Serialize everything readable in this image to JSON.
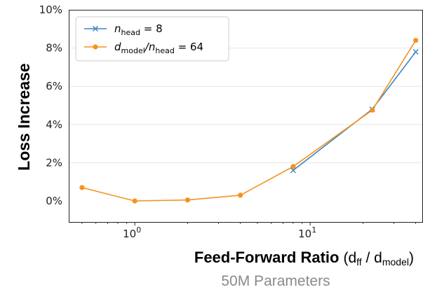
{
  "chart_data": {
    "type": "line",
    "xlabel_bold": "Feed-Forward Ratio",
    "xlabel_rest": "(d",
    "xlabel_sub1": "ff",
    "xlabel_mid": " / d",
    "xlabel_sub2": "model",
    "xlabel_end": ")",
    "ylabel": "Loss Increase",
    "subtitle": "50M Parameters",
    "x_scale": "log",
    "xlim": [
      0.42,
      44
    ],
    "ylim": [
      -1.1,
      10
    ],
    "y_ticks": [
      0,
      2,
      4,
      6,
      8,
      10
    ],
    "y_tick_labels": [
      "0%",
      "2%",
      "4%",
      "6%",
      "8%",
      "10%"
    ],
    "x_ticks": [
      1,
      10
    ],
    "x_tick_labels": [
      {
        "base": "10",
        "exp": "0"
      },
      {
        "base": "10",
        "exp": "1"
      }
    ],
    "grid": "horizontal",
    "legend_position": "top-left",
    "series": [
      {
        "name_main": "n",
        "name_sub": "head",
        "name_rest": " = 8",
        "color": "#3b82c4",
        "marker": "x",
        "x": [
          8,
          22.6,
          40
        ],
        "y": [
          1.6,
          4.8,
          7.8
        ]
      },
      {
        "name_main": "d",
        "name_sub": "model",
        "name_mid": "/n",
        "name_sub2": "head",
        "name_rest": " = 64",
        "color": "#f5931f",
        "marker": "o",
        "x": [
          0.5,
          1,
          2,
          4,
          8,
          22.6,
          40
        ],
        "y": [
          0.7,
          0.0,
          0.05,
          0.3,
          1.8,
          4.75,
          8.4
        ]
      }
    ]
  }
}
